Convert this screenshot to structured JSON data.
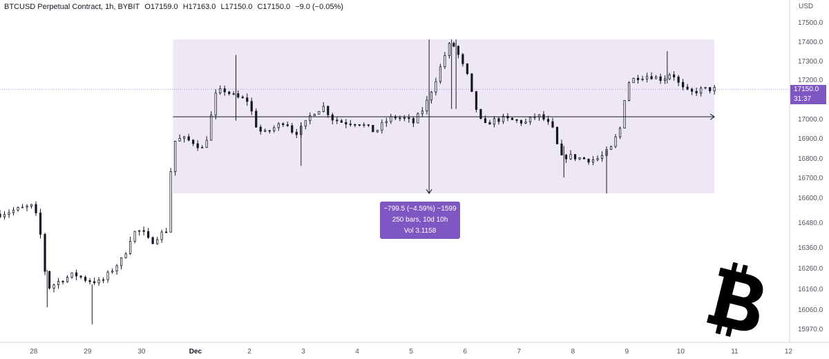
{
  "header": {
    "symbol": "BTCUSD Perpetual Contract, 1h, BYBIT",
    "open": "O17159.0",
    "high": "H17163.0",
    "low": "L17150.0",
    "close": "C17150.0",
    "change": "−9.0 (−0.05%)"
  },
  "price_scale": {
    "currency": "USD",
    "last_price": "17150.0",
    "countdown": "31:37"
  },
  "measure_tool": {
    "line1": "−799.5 (−4.59%) −1599",
    "line2": "250 bars, 10d 10h",
    "line3": "Vol 3.1158"
  },
  "colors": {
    "accent": "#7e57c2",
    "range_fill": "#ede7f6",
    "candle": "#131722",
    "grid": "#f0f3fa"
  },
  "chart_data": {
    "type": "candlestick",
    "title": "BTCUSD Perpetual Contract, 1h, BYBIT",
    "y_ticks": [
      17500.0,
      17400.0,
      17300.0,
      17200.0,
      17000.0,
      16900.0,
      16800.0,
      16700.0,
      16600.0,
      16480.0,
      16360.0,
      16260.0,
      16160.0,
      16060.0,
      15970.0
    ],
    "ylim": [
      15940,
      17560
    ],
    "x_ticks": [
      "28",
      "29",
      "30",
      "Dec",
      "2",
      "3",
      "4",
      "5",
      "6",
      "7",
      "8",
      "9",
      "10",
      "11",
      "12"
    ],
    "xlim": [
      "2022-11-27T09:00",
      "2022-12-12T18:00"
    ],
    "x_tick_dates": [
      "2022-11-28",
      "2022-11-29",
      "2022-11-30",
      "2022-12-01",
      "2022-12-02",
      "2022-12-03",
      "2022-12-04",
      "2022-12-05",
      "2022-12-06",
      "2022-12-07",
      "2022-12-08",
      "2022-12-09",
      "2022-12-10",
      "2022-12-11",
      "2022-12-12"
    ],
    "last_price": 17150.0,
    "close_path": [
      [
        "2022-11-27T09:00",
        16520
      ],
      [
        "2022-11-27T16:00",
        16540
      ],
      [
        "2022-11-28T00:00",
        16560
      ],
      [
        "2022-11-28T03:00",
        16420
      ],
      [
        "2022-11-28T06:00",
        16160
      ],
      [
        "2022-11-28T12:00",
        16200
      ],
      [
        "2022-11-28T18:00",
        16230
      ],
      [
        "2022-11-29T00:00",
        16200
      ],
      [
        "2022-11-29T06:00",
        16190
      ],
      [
        "2022-11-29T10:00",
        16240
      ],
      [
        "2022-11-29T16:00",
        16310
      ],
      [
        "2022-11-29T20:00",
        16430
      ],
      [
        "2022-11-30T00:00",
        16440
      ],
      [
        "2022-11-30T04:00",
        16380
      ],
      [
        "2022-11-30T08:00",
        16420
      ],
      [
        "2022-11-30T11:00",
        16440
      ],
      [
        "2022-11-30T14:00",
        16880
      ],
      [
        "2022-11-30T18:00",
        16900
      ],
      [
        "2022-11-30T23:00",
        16880
      ],
      [
        "2022-12-01T04:00",
        16840
      ],
      [
        "2022-12-01T06:00",
        16960
      ],
      [
        "2022-12-01T09:00",
        17120
      ],
      [
        "2022-12-01T12:00",
        17150
      ],
      [
        "2022-12-01T18:00",
        17110
      ],
      [
        "2022-12-02T00:00",
        17090
      ],
      [
        "2022-12-02T02:00",
        16980
      ],
      [
        "2022-12-02T06:00",
        16920
      ],
      [
        "2022-12-02T12:00",
        16960
      ],
      [
        "2022-12-02T16:00",
        16990
      ],
      [
        "2022-12-02T20:00",
        16920
      ],
      [
        "2022-12-03T00:00",
        16960
      ],
      [
        "2022-12-03T04:00",
        17030
      ],
      [
        "2022-12-03T09:00",
        17060
      ],
      [
        "2022-12-03T13:00",
        17000
      ],
      [
        "2022-12-03T18:00",
        16980
      ],
      [
        "2022-12-04T00:00",
        16980
      ],
      [
        "2022-12-04T04:00",
        16960
      ],
      [
        "2022-12-04T08:00",
        16930
      ],
      [
        "2022-12-04T12:00",
        16980
      ],
      [
        "2022-12-04T16:00",
        17010
      ],
      [
        "2022-12-04T21:00",
        17000
      ],
      [
        "2022-12-05T01:00",
        16980
      ],
      [
        "2022-12-05T06:00",
        17060
      ],
      [
        "2022-12-05T11:00",
        17200
      ],
      [
        "2022-12-05T16:00",
        17360
      ],
      [
        "2022-12-05T18:00",
        17400
      ],
      [
        "2022-12-05T21:00",
        17330
      ],
      [
        "2022-12-06T01:00",
        17220
      ],
      [
        "2022-12-06T04:00",
        17080
      ],
      [
        "2022-12-06T08:00",
        16960
      ],
      [
        "2022-12-06T12:00",
        16990
      ],
      [
        "2022-12-06T17:00",
        17000
      ],
      [
        "2022-12-06T22:00",
        16990
      ],
      [
        "2022-12-07T03:00",
        16980
      ],
      [
        "2022-12-07T08:00",
        17020
      ],
      [
        "2022-12-07T12:00",
        16990
      ],
      [
        "2022-12-07T16:00",
        16930
      ],
      [
        "2022-12-07T18:00",
        16800
      ],
      [
        "2022-12-07T22:00",
        16810
      ],
      [
        "2022-12-08T03:00",
        16800
      ],
      [
        "2022-12-08T08:00",
        16790
      ],
      [
        "2022-12-08T12:00",
        16800
      ],
      [
        "2022-12-08T17:00",
        16850
      ],
      [
        "2022-12-08T21:00",
        16950
      ],
      [
        "2022-12-09T00:00",
        17180
      ],
      [
        "2022-12-09T04:00",
        17210
      ],
      [
        "2022-12-09T10:00",
        17220
      ],
      [
        "2022-12-09T16:00",
        17200
      ],
      [
        "2022-12-09T20:00",
        17240
      ],
      [
        "2022-12-10T00:00",
        17160
      ],
      [
        "2022-12-10T04:00",
        17130
      ],
      [
        "2022-12-10T10:00",
        17150
      ],
      [
        "2022-12-10T15:00",
        17150
      ]
    ],
    "notable_wicks": [
      [
        "2022-11-28T06:00",
        16070,
        16250
      ],
      [
        "2022-11-29T02:00",
        15990,
        16180
      ],
      [
        "2022-12-01T18:00",
        16990,
        17330
      ],
      [
        "2022-12-02T23:00",
        16760,
        16980
      ],
      [
        "2022-12-05T18:00",
        17050,
        17410
      ],
      [
        "2022-12-05T20:00",
        17050,
        17410
      ],
      [
        "2022-12-07T20:00",
        16700,
        16860
      ],
      [
        "2022-12-08T15:00",
        16620,
        16840
      ],
      [
        "2022-12-09T18:00",
        17180,
        17350
      ]
    ],
    "range_box": {
      "from": "2022-11-30T14:00",
      "to": "2022-12-10T15:00",
      "high": 17410,
      "low": 16620,
      "mid": 17010
    },
    "measure": {
      "change": -799.5,
      "change_pct": -4.59,
      "bars": 250,
      "duration": "10d 10h",
      "volume": 3.1158
    }
  }
}
